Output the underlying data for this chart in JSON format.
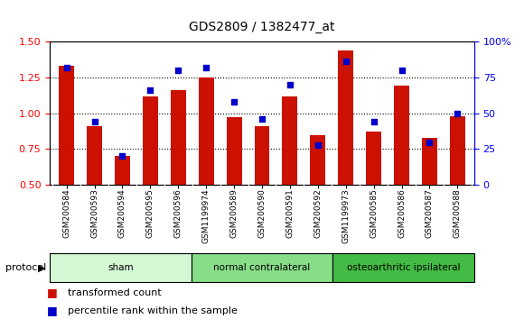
{
  "title": "GDS2809 / 1382477_at",
  "samples": [
    "GSM200584",
    "GSM200593",
    "GSM200594",
    "GSM200595",
    "GSM200596",
    "GSM1199974",
    "GSM200589",
    "GSM200590",
    "GSM200591",
    "GSM200592",
    "GSM1199973",
    "GSM200585",
    "GSM200586",
    "GSM200587",
    "GSM200588"
  ],
  "red_values": [
    1.33,
    0.91,
    0.7,
    1.12,
    1.16,
    1.25,
    0.97,
    0.91,
    1.12,
    0.85,
    1.44,
    0.87,
    1.19,
    0.83,
    0.98
  ],
  "blue_values": [
    82,
    44,
    20,
    66,
    80,
    82,
    58,
    46,
    70,
    28,
    86,
    44,
    80,
    30,
    50
  ],
  "ylim_left": [
    0.5,
    1.5
  ],
  "ylim_right": [
    0,
    100
  ],
  "yticks_left": [
    0.5,
    0.75,
    1.0,
    1.25,
    1.5
  ],
  "yticks_right": [
    0,
    25,
    50,
    75,
    100
  ],
  "ytick_labels_right": [
    "0",
    "25",
    "50",
    "75",
    "100%"
  ],
  "groups": [
    {
      "label": "sham",
      "start": 0,
      "end": 5,
      "color": "#d4f7d4"
    },
    {
      "label": "normal contralateral",
      "start": 5,
      "end": 10,
      "color": "#88dd88"
    },
    {
      "label": "osteoarthritic ipsilateral",
      "start": 10,
      "end": 15,
      "color": "#44bb44"
    }
  ],
  "protocol_label": "protocol",
  "legend_red": "transformed count",
  "legend_blue": "percentile rank within the sample",
  "bar_color": "#cc1100",
  "dot_color": "#0000cc",
  "xtick_bg": "#d8d8d8",
  "background_color": "#ffffff",
  "bar_width": 0.55
}
